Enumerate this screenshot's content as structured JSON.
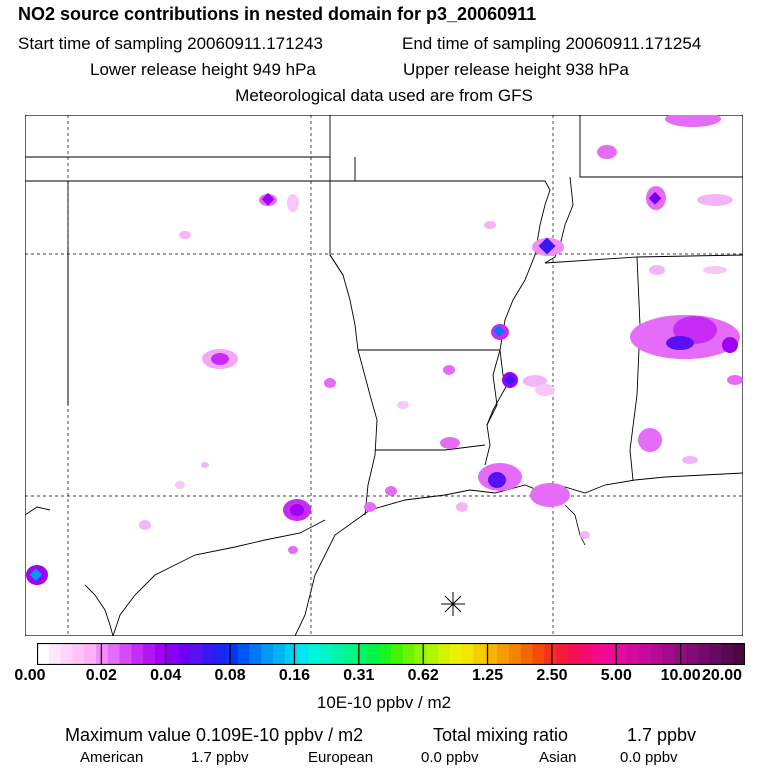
{
  "header": {
    "title": "NO2 source contributions in nested domain for p3_20060911",
    "start_time": "Start time of sampling 20060911.171243",
    "end_time": "End time of sampling 20060911.171254",
    "lower_release": "Lower release height  949 hPa",
    "upper_release": "Upper release height  938 hPa",
    "met_data": "Meteorological data used are from GFS"
  },
  "colorbar": {
    "tick_labels": [
      "0.00",
      "0.02",
      "0.04",
      "0.08",
      "0.16",
      "0.31",
      "0.62",
      "1.25",
      "2.50",
      "5.00",
      "10.00",
      "20.00"
    ],
    "units": "10E-10 ppbv / m2",
    "colors": [
      "#ffffff",
      "#ffe8fb",
      "#ffd6f9",
      "#ffc3f7",
      "#ffb0f6",
      "#f28df8",
      "#e46cf8",
      "#d54bf7",
      "#c62cf6",
      "#b214f5",
      "#9f00f5",
      "#8a00f5",
      "#7000f5",
      "#5810f5",
      "#3818f5",
      "#1f22f5",
      "#0a33f5",
      "#0055f5",
      "#0077f5",
      "#0099f5",
      "#00b3f5",
      "#00cdf5",
      "#00e5ef",
      "#00f5dd",
      "#00f5c4",
      "#00f5a8",
      "#00f58a",
      "#00f568",
      "#00f545",
      "#19f520",
      "#44f500",
      "#6cf500",
      "#90f500",
      "#b2f500",
      "#d1f500",
      "#edf200",
      "#f5e300",
      "#f5cd00",
      "#f5b500",
      "#f59c00",
      "#f58200",
      "#f56600",
      "#f54a00",
      "#f53020",
      "#f51c3a",
      "#f50f55",
      "#f50a70",
      "#f50a8a",
      "#ee0a98",
      "#e30aa0",
      "#d40aa0",
      "#c50a9c",
      "#b40a95",
      "#a30a8c",
      "#930a82",
      "#830a78",
      "#740a6c",
      "#650a60",
      "#58094f",
      "#4a083e"
    ]
  },
  "summary": {
    "max_value": "Maximum value  0.109E-10 ppbv / m2",
    "total_label": "Total mixing ratio",
    "total_value": "1.7 ppbv",
    "american_label": "American",
    "american_value": "1.7 ppbv",
    "european_label": "European",
    "european_value": "0.0 ppbv",
    "asian_label": "Asian",
    "asian_value": "0.0 ppbv"
  }
}
